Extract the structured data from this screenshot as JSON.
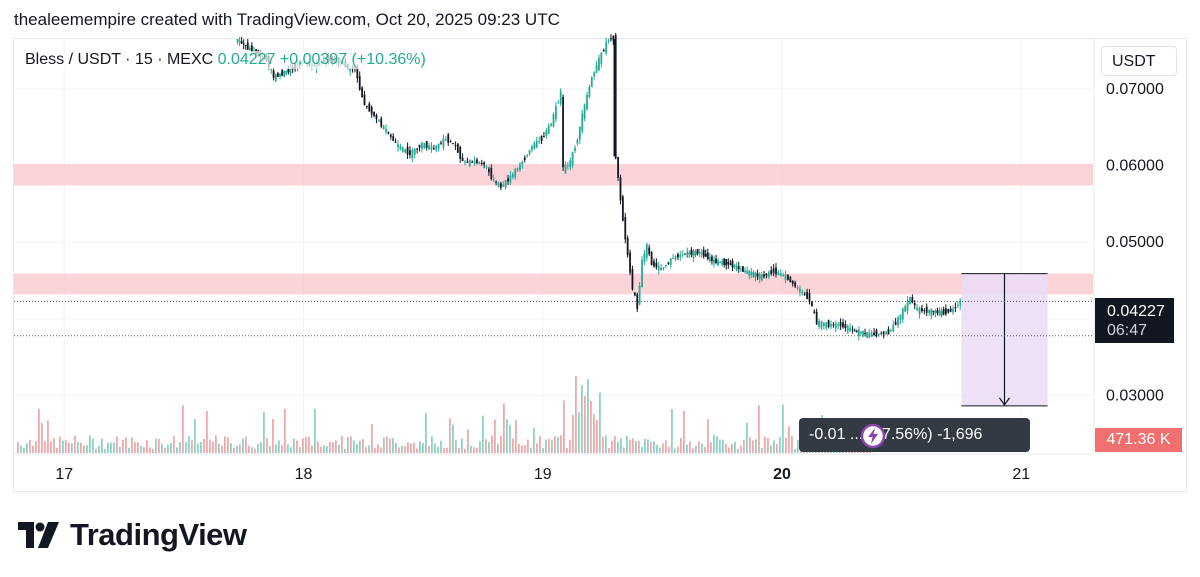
{
  "header": "thealeemempire created with TradingView.com, Oct 20, 2025 09:23 UTC",
  "legend": {
    "symbol": "Bless / USDT · 15 · MEXC",
    "values": "0.04227 +0.00397 (+10.36%)"
  },
  "currency": "USDT",
  "price_label": {
    "price": "0.04227",
    "countdown": "06:47"
  },
  "volume_label": "471.36 K",
  "measure_label": "-0.01 ... -37.56%) -1,696",
  "brand": "TradingView",
  "colors": {
    "up": "#22ab94",
    "down": "#131722",
    "zone": "#f9c6cc",
    "measure": "#eadcf4",
    "vol_up": "#8fd1c6",
    "vol_down": "#f0a8a8"
  },
  "chart_data": {
    "type": "candlestick",
    "title": "Bless / USDT · 15 · MEXC",
    "x_ticks": [
      "17",
      "18",
      "19",
      "20",
      "21"
    ],
    "y_ticks": [
      "0.07000",
      "0.06000",
      "0.05000",
      "0.03000"
    ],
    "ylim": [
      0.0225,
      0.0765
    ],
    "xlim": [
      16.79,
      21.3
    ],
    "series_path": [
      [
        17.72,
        0.0765
      ],
      [
        17.78,
        0.0752
      ],
      [
        17.85,
        0.0738
      ],
      [
        17.88,
        0.0715
      ],
      [
        17.95,
        0.0725
      ],
      [
        18.0,
        0.0735
      ],
      [
        18.05,
        0.073
      ],
      [
        18.1,
        0.0738
      ],
      [
        18.16,
        0.0735
      ],
      [
        18.2,
        0.0725
      ],
      [
        18.22,
        0.0728
      ],
      [
        18.24,
        0.07
      ],
      [
        18.26,
        0.068
      ],
      [
        18.3,
        0.0665
      ],
      [
        18.35,
        0.0645
      ],
      [
        18.4,
        0.0625
      ],
      [
        18.45,
        0.0615
      ],
      [
        18.5,
        0.0628
      ],
      [
        18.55,
        0.0622
      ],
      [
        18.6,
        0.0635
      ],
      [
        18.64,
        0.0625
      ],
      [
        18.67,
        0.0605
      ],
      [
        18.72,
        0.0605
      ],
      [
        18.76,
        0.0602
      ],
      [
        18.8,
        0.058
      ],
      [
        18.83,
        0.0572
      ],
      [
        18.87,
        0.0585
      ],
      [
        18.92,
        0.0605
      ],
      [
        18.96,
        0.0625
      ],
      [
        19.0,
        0.0635
      ],
      [
        19.04,
        0.0655
      ],
      [
        19.08,
        0.0695
      ],
      [
        19.09,
        0.0595
      ],
      [
        19.12,
        0.0605
      ],
      [
        19.15,
        0.0635
      ],
      [
        19.17,
        0.0665
      ],
      [
        19.21,
        0.0715
      ],
      [
        19.25,
        0.0745
      ],
      [
        19.28,
        0.0765
      ],
      [
        19.3,
        0.0765
      ],
      [
        19.31,
        0.0612
      ],
      [
        19.33,
        0.0555
      ],
      [
        19.35,
        0.0505
      ],
      [
        19.38,
        0.044
      ],
      [
        19.4,
        0.0415
      ],
      [
        19.42,
        0.0475
      ],
      [
        19.44,
        0.0495
      ],
      [
        19.46,
        0.0472
      ],
      [
        19.5,
        0.0465
      ],
      [
        19.55,
        0.048
      ],
      [
        19.6,
        0.0485
      ],
      [
        19.66,
        0.0487
      ],
      [
        19.72,
        0.0475
      ],
      [
        19.78,
        0.0472
      ],
      [
        19.85,
        0.0462
      ],
      [
        19.92,
        0.0455
      ],
      [
        19.97,
        0.0462
      ],
      [
        20.02,
        0.0455
      ],
      [
        20.07,
        0.044
      ],
      [
        20.12,
        0.0425
      ],
      [
        20.15,
        0.0395
      ],
      [
        20.2,
        0.0392
      ],
      [
        20.25,
        0.0392
      ],
      [
        20.3,
        0.0385
      ],
      [
        20.36,
        0.038
      ],
      [
        20.4,
        0.038
      ],
      [
        20.45,
        0.0382
      ],
      [
        20.48,
        0.0395
      ],
      [
        20.5,
        0.0405
      ],
      [
        20.54,
        0.0427
      ],
      [
        20.57,
        0.0412
      ],
      [
        20.62,
        0.041
      ],
      [
        20.68,
        0.0408
      ],
      [
        20.72,
        0.0412
      ],
      [
        20.75,
        0.0423
      ]
    ],
    "zones": [
      {
        "from": 0.0574,
        "to": 0.0602
      },
      {
        "from": 0.0432,
        "to": 0.0459
      }
    ],
    "dotted_levels": [
      0.04227,
      0.0378
    ],
    "measure": {
      "x_from": 20.75,
      "x_to": 21.11,
      "y_from": 0.0459,
      "y_to": 0.02865
    }
  }
}
